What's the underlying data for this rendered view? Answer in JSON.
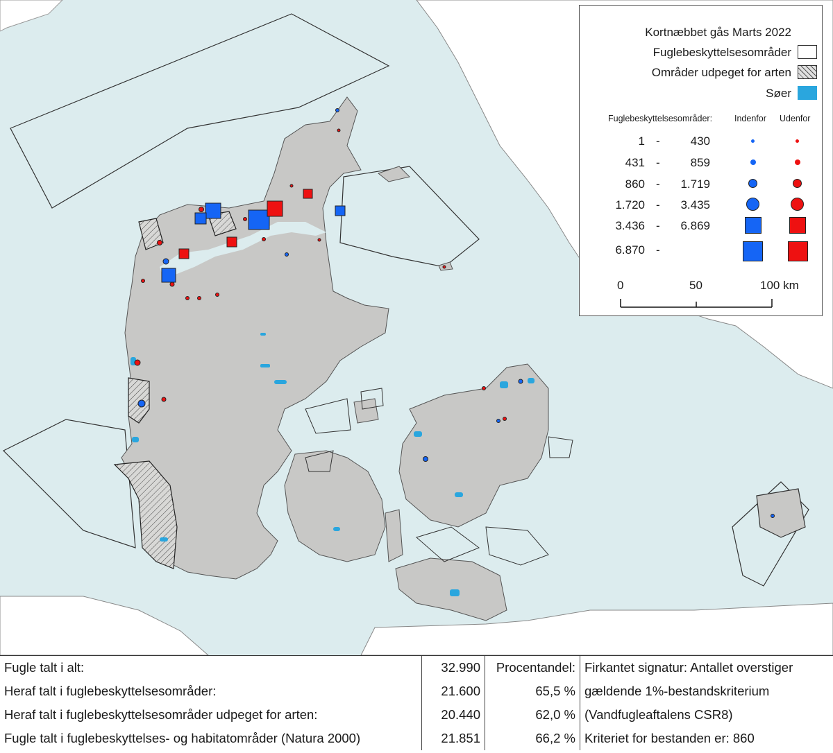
{
  "colors": {
    "sea": "#dcecee",
    "land": "#c8c8c6",
    "lake": "#2aa6de",
    "inside": "#1565f5",
    "outside": "#ee1111"
  },
  "legend": {
    "title": "Kortnæbbet gås Marts 2022",
    "items": [
      {
        "label": "Fuglebeskyttelsesområder",
        "swatch": "empty-box"
      },
      {
        "label": "Områder udpeget for arten",
        "swatch": "hatched-box"
      },
      {
        "label": "Søer",
        "swatch": "lake-box"
      }
    ],
    "size_header": "Fuglebeskyttelsesområder:",
    "col_inside": "Indenfor",
    "col_outside": "Udenfor",
    "classes": [
      {
        "from": "1",
        "sep": "-",
        "to": "430",
        "shape": "dot-tiny"
      },
      {
        "from": "431",
        "sep": "-",
        "to": "859",
        "shape": "dot-small"
      },
      {
        "from": "860",
        "sep": "-",
        "to": "1.719",
        "shape": "dot-medium"
      },
      {
        "from": "1.720",
        "sep": "-",
        "to": "3.435",
        "shape": "dot-large"
      },
      {
        "from": "3.436",
        "sep": "-",
        "to": "6.869",
        "shape": "square-medium"
      },
      {
        "from": "6.870",
        "sep": "-",
        "to": "",
        "shape": "square-large"
      }
    ],
    "scale": {
      "labels": [
        "0",
        "50",
        "100 km"
      ]
    }
  },
  "stats": {
    "rows": [
      {
        "label": "Fugle talt i alt:",
        "value": "32.990",
        "pct": "Procentandel:",
        "note": "Firkantet signatur: Antallet overstiger"
      },
      {
        "label": "Heraf talt i fuglebeskyttelsesområder:",
        "value": "21.600",
        "pct": "65,5 %",
        "note": "gældende 1%-bestandskriterium"
      },
      {
        "label": "Heraf talt i fuglebeskyttelsesområder udpeget for arten:",
        "value": "20.440",
        "pct": "62,0 %",
        "note": "(Vandfugleaftalens CSR8)"
      },
      {
        "label": "Fugle talt i fuglebeskyttelses- og habitatområder (Natura 2000)",
        "value": "21.851",
        "pct": "66,2 %",
        "note": "Kriteriet for bestanden er: 860"
      }
    ]
  }
}
